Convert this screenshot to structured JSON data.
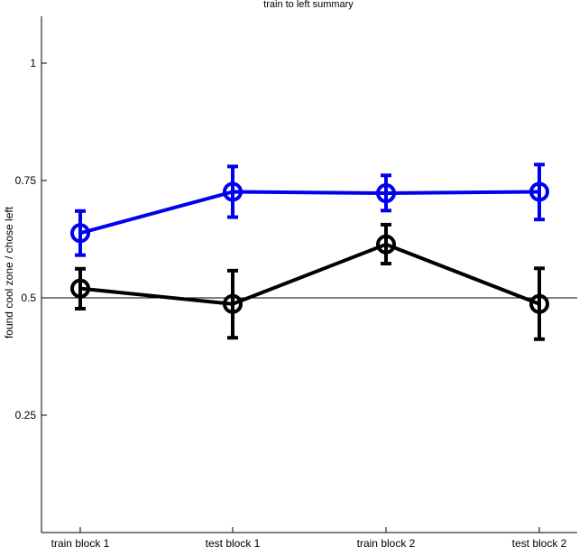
{
  "chart_data": {
    "type": "line",
    "title": "train to left summary",
    "xlabel": "",
    "ylabel": "found cool zone / chose left",
    "categories": [
      "train block 1",
      "test block 1",
      "train block 2",
      "test block 2"
    ],
    "ylim": [
      0,
      1.1
    ],
    "yticks": [
      0.25,
      0.5,
      0.75,
      1
    ],
    "ytick_labels": [
      "0.25",
      "0.5",
      "0.75",
      "1"
    ],
    "reference_line": 0.5,
    "grid": false,
    "series": [
      {
        "color": "#0000ee",
        "values": [
          0.638,
          0.726,
          0.723,
          0.726
        ],
        "err_low": [
          0.591,
          0.672,
          0.686,
          0.667
        ],
        "err_high": [
          0.685,
          0.78,
          0.761,
          0.784
        ],
        "marker": "open-circle"
      },
      {
        "color": "#000000",
        "values": [
          0.52,
          0.487,
          0.614,
          0.487
        ],
        "err_low": [
          0.477,
          0.415,
          0.573,
          0.412
        ],
        "err_high": [
          0.562,
          0.558,
          0.656,
          0.563
        ],
        "marker": "open-circle"
      }
    ]
  }
}
